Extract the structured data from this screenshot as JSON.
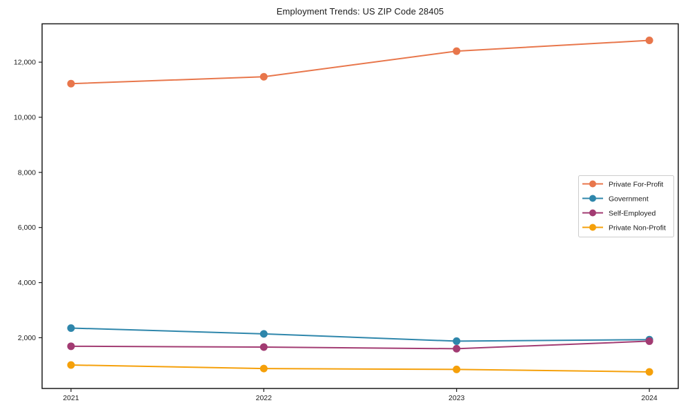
{
  "chart_data": {
    "type": "line",
    "title": "Employment Trends: US ZIP Code 28405",
    "x": [
      "2021",
      "2022",
      "2023",
      "2024"
    ],
    "series": [
      {
        "name": "Private For-Profit",
        "color": "#E8764B",
        "values": [
          11220,
          11470,
          12400,
          12790
        ]
      },
      {
        "name": "Government",
        "color": "#2E86AB",
        "values": [
          2350,
          2140,
          1875,
          1930
        ]
      },
      {
        "name": "Self-Employed",
        "color": "#A23B72",
        "values": [
          1690,
          1660,
          1600,
          1875
        ]
      },
      {
        "name": "Private Non-Profit",
        "color": "#F5A00A",
        "values": [
          1010,
          880,
          850,
          760
        ]
      }
    ],
    "yticks": [
      2000,
      4000,
      6000,
      8000,
      10000,
      12000
    ],
    "ytick_labels": [
      "2,000",
      "4,000",
      "6,000",
      "8,000",
      "10,000",
      "12,000"
    ],
    "ylim": [
      158,
      13392
    ],
    "xlabel": "",
    "ylabel": "",
    "grid": false,
    "legend_position": "center-right",
    "legend_border_color": "#cccccc",
    "legend_background": "#ffffff",
    "axis_color": "#1a1a1a",
    "text_color": "#1a1a1a",
    "plot_background": "#ffffff",
    "marker": "circle"
  }
}
